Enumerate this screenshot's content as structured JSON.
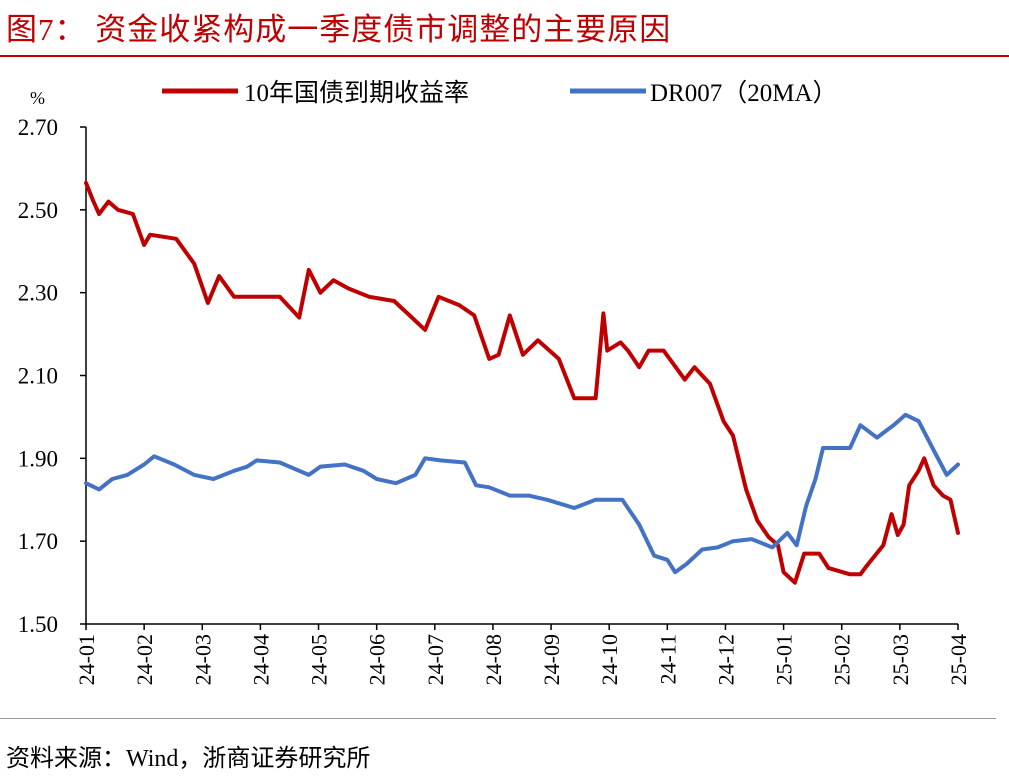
{
  "title": "图7：  资金收紧构成一季度债市调整的主要原因",
  "source": "资料来源：Wind，浙商证券研究所",
  "chart_data": {
    "type": "line",
    "ylabel": "%",
    "ylim": [
      1.5,
      2.7
    ],
    "yticks": [
      "1.50",
      "1.70",
      "1.90",
      "2.10",
      "2.30",
      "2.50",
      "2.70"
    ],
    "xticks": [
      "24-01",
      "24-02",
      "24-03",
      "24-04",
      "24-05",
      "24-06",
      "24-07",
      "24-08",
      "24-09",
      "24-10",
      "24-11",
      "24-12",
      "25-01",
      "25-02",
      "25-03",
      "25-04"
    ],
    "xlim": [
      "2024-01-01",
      "2025-04-01"
    ],
    "grid": false,
    "legend_position": "top",
    "series": [
      {
        "name": "10年国债到期收益率",
        "color": "#C00000",
        "points": [
          [
            "2024-01-01",
            2.565
          ],
          [
            "2024-01-05",
            2.52
          ],
          [
            "2024-01-08",
            2.49
          ],
          [
            "2024-01-13",
            2.52
          ],
          [
            "2024-01-18",
            2.5
          ],
          [
            "2024-01-26",
            2.49
          ],
          [
            "2024-02-01",
            2.415
          ],
          [
            "2024-02-04",
            2.44
          ],
          [
            "2024-02-17",
            2.43
          ],
          [
            "2024-02-26",
            2.37
          ],
          [
            "2024-03-04",
            2.275
          ],
          [
            "2024-03-10",
            2.34
          ],
          [
            "2024-03-18",
            2.29
          ],
          [
            "2024-03-30",
            2.29
          ],
          [
            "2024-04-11",
            2.29
          ],
          [
            "2024-04-21",
            2.24
          ],
          [
            "2024-04-26",
            2.355
          ],
          [
            "2024-05-02",
            2.3
          ],
          [
            "2024-05-09",
            2.33
          ],
          [
            "2024-05-17",
            2.31
          ],
          [
            "2024-05-28",
            2.29
          ],
          [
            "2024-06-10",
            2.28
          ],
          [
            "2024-06-18",
            2.245
          ],
          [
            "2024-06-26",
            2.21
          ],
          [
            "2024-07-03",
            2.29
          ],
          [
            "2024-07-14",
            2.27
          ],
          [
            "2024-07-22",
            2.245
          ],
          [
            "2024-07-30",
            2.14
          ],
          [
            "2024-08-04",
            2.15
          ],
          [
            "2024-08-10",
            2.245
          ],
          [
            "2024-08-17",
            2.15
          ],
          [
            "2024-08-25",
            2.185
          ],
          [
            "2024-09-05",
            2.14
          ],
          [
            "2024-09-13",
            2.045
          ],
          [
            "2024-09-24",
            2.045
          ],
          [
            "2024-09-28",
            2.25
          ],
          [
            "2024-09-30",
            2.16
          ],
          [
            "2024-10-07",
            2.18
          ],
          [
            "2024-10-11",
            2.16
          ],
          [
            "2024-10-17",
            2.12
          ],
          [
            "2024-10-22",
            2.16
          ],
          [
            "2024-10-30",
            2.16
          ],
          [
            "2024-11-10",
            2.09
          ],
          [
            "2024-11-15",
            2.12
          ],
          [
            "2024-11-23",
            2.08
          ],
          [
            "2024-11-30",
            1.99
          ],
          [
            "2024-12-05",
            1.955
          ],
          [
            "2024-12-12",
            1.825
          ],
          [
            "2024-12-18",
            1.75
          ],
          [
            "2024-12-24",
            1.71
          ],
          [
            "2024-12-29",
            1.69
          ],
          [
            "2025-01-01",
            1.625
          ],
          [
            "2025-01-07",
            1.6
          ],
          [
            "2025-01-12",
            1.67
          ],
          [
            "2025-01-20",
            1.67
          ],
          [
            "2025-01-25",
            1.635
          ],
          [
            "2025-02-05",
            1.62
          ],
          [
            "2025-02-10",
            1.62
          ],
          [
            "2025-02-13",
            1.64
          ],
          [
            "2025-02-21",
            1.69
          ],
          [
            "2025-02-25",
            1.765
          ],
          [
            "2025-02-28",
            1.715
          ],
          [
            "2025-03-03",
            1.74
          ],
          [
            "2025-03-06",
            1.835
          ],
          [
            "2025-03-11",
            1.87
          ],
          [
            "2025-03-14",
            1.9
          ],
          [
            "2025-03-19",
            1.835
          ],
          [
            "2025-03-24",
            1.81
          ],
          [
            "2025-03-28",
            1.8
          ],
          [
            "2025-04-01",
            1.72
          ]
        ]
      },
      {
        "name": "DR007（20MA）",
        "color": "#4472C4",
        "points": [
          [
            "2024-01-01",
            1.84
          ],
          [
            "2024-01-08",
            1.825
          ],
          [
            "2024-01-15",
            1.85
          ],
          [
            "2024-01-23",
            1.86
          ],
          [
            "2024-02-01",
            1.885
          ],
          [
            "2024-02-06",
            1.905
          ],
          [
            "2024-02-16",
            1.885
          ],
          [
            "2024-02-26",
            1.86
          ],
          [
            "2024-03-07",
            1.85
          ],
          [
            "2024-03-18",
            1.87
          ],
          [
            "2024-03-25",
            1.88
          ],
          [
            "2024-03-30",
            1.895
          ],
          [
            "2024-04-11",
            1.89
          ],
          [
            "2024-04-21",
            1.87
          ],
          [
            "2024-04-26",
            1.86
          ],
          [
            "2024-05-02",
            1.88
          ],
          [
            "2024-05-15",
            1.885
          ],
          [
            "2024-05-25",
            1.87
          ],
          [
            "2024-06-01",
            1.85
          ],
          [
            "2024-06-11",
            1.84
          ],
          [
            "2024-06-21",
            1.86
          ],
          [
            "2024-06-26",
            1.9
          ],
          [
            "2024-07-04",
            1.895
          ],
          [
            "2024-07-17",
            1.89
          ],
          [
            "2024-07-23",
            1.835
          ],
          [
            "2024-07-30",
            1.83
          ],
          [
            "2024-08-10",
            1.81
          ],
          [
            "2024-08-20",
            1.81
          ],
          [
            "2024-08-30",
            1.8
          ],
          [
            "2024-09-13",
            1.78
          ],
          [
            "2024-09-24",
            1.8
          ],
          [
            "2024-10-04",
            1.8
          ],
          [
            "2024-10-08",
            1.8
          ],
          [
            "2024-10-17",
            1.74
          ],
          [
            "2024-10-25",
            1.665
          ],
          [
            "2024-11-01",
            1.655
          ],
          [
            "2024-11-05",
            1.625
          ],
          [
            "2024-11-11",
            1.645
          ],
          [
            "2024-11-19",
            1.68
          ],
          [
            "2024-11-27",
            1.685
          ],
          [
            "2024-12-05",
            1.7
          ],
          [
            "2024-12-15",
            1.705
          ],
          [
            "2024-12-26",
            1.685
          ],
          [
            "2025-01-03",
            1.72
          ],
          [
            "2025-01-08",
            1.69
          ],
          [
            "2025-01-13",
            1.785
          ],
          [
            "2025-01-18",
            1.85
          ],
          [
            "2025-01-22",
            1.925
          ],
          [
            "2025-02-05",
            1.925
          ],
          [
            "2025-02-10",
            1.98
          ],
          [
            "2025-02-18",
            1.95
          ],
          [
            "2025-02-26",
            1.98
          ],
          [
            "2025-03-04",
            2.005
          ],
          [
            "2025-03-11",
            1.99
          ],
          [
            "2025-03-19",
            1.92
          ],
          [
            "2025-03-26",
            1.86
          ],
          [
            "2025-04-01",
            1.885
          ]
        ]
      }
    ]
  }
}
